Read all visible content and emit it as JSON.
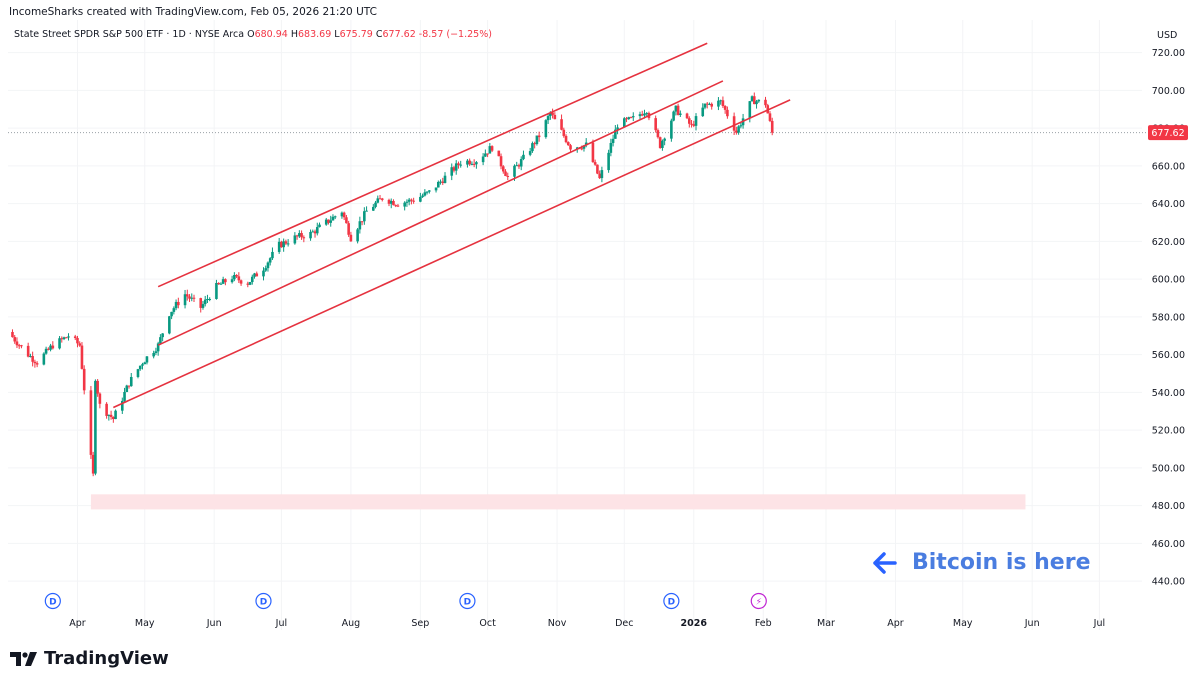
{
  "header": {
    "credit": "IncomeSharks created with TradingView.com, Feb 05, 2026 21:20 UTC",
    "symbol": "State Street SPDR S&P 500 ETF · 1D · NYSE Arca",
    "open_label": "O",
    "open": "680.94",
    "high_label": "H",
    "high": "683.69",
    "low_label": "L",
    "low": "675.79",
    "close_label": "C",
    "close": "677.62",
    "change": "-8.57 (−1.25%)",
    "currency": "USD"
  },
  "brand": {
    "name": "TradingView"
  },
  "annotation": {
    "text": "Bitcoin is here",
    "arrow": "left-arrow-icon"
  },
  "colors": {
    "up": "#089981",
    "down": "#f23645",
    "channel": "#e5323f",
    "zone": "#fde3e6",
    "annotation": "#2962ff",
    "price_tag": "#f23645"
  },
  "chart_data": {
    "type": "candlestick",
    "y_axis": {
      "ylim": [
        430,
        732
      ],
      "ticks": [
        440,
        460,
        480,
        500,
        520,
        540,
        560,
        580,
        600,
        620,
        640,
        660,
        680,
        700,
        720
      ],
      "tick_labels": [
        "440.00",
        "460.00",
        "480.00",
        "500.00",
        "520.00",
        "540.00",
        "560.00",
        "580.00",
        "600.00",
        "620.00",
        "640.00",
        "660.00",
        "680.00",
        "700.00",
        "720.00"
      ]
    },
    "x_axis": {
      "xlim": [
        "2025-03-01",
        "2026-07-20"
      ],
      "labels": [
        {
          "date": "2025-04-01",
          "text": "Apr"
        },
        {
          "date": "2025-05-01",
          "text": "May"
        },
        {
          "date": "2025-06-01",
          "text": "Jun"
        },
        {
          "date": "2025-07-01",
          "text": "Jul"
        },
        {
          "date": "2025-08-01",
          "text": "Aug"
        },
        {
          "date": "2025-09-01",
          "text": "Sep"
        },
        {
          "date": "2025-10-01",
          "text": "Oct"
        },
        {
          "date": "2025-11-01",
          "text": "Nov"
        },
        {
          "date": "2025-12-01",
          "text": "Dec"
        },
        {
          "date": "2026-01-01",
          "text": "2026",
          "bold": true
        },
        {
          "date": "2026-02-01",
          "text": "Feb"
        },
        {
          "date": "2026-03-01",
          "text": "Mar"
        },
        {
          "date": "2026-04-01",
          "text": "Apr"
        },
        {
          "date": "2026-05-01",
          "text": "May"
        },
        {
          "date": "2026-06-01",
          "text": "Jun"
        },
        {
          "date": "2026-07-01",
          "text": "Jul"
        }
      ]
    },
    "last_price": 677.62,
    "last_price_label": "677.62",
    "series": [
      {
        "date": "2025-03-01",
        "close": 572
      },
      {
        "date": "2025-03-10",
        "close": 560
      },
      {
        "date": "2025-03-14",
        "close": 556
      },
      {
        "date": "2025-03-21",
        "close": 565
      },
      {
        "date": "2025-03-28",
        "close": 570
      },
      {
        "date": "2025-04-02",
        "close": 565
      },
      {
        "date": "2025-04-04",
        "close": 542
      },
      {
        "date": "2025-04-07",
        "close": 505
      },
      {
        "date": "2025-04-08",
        "close": 496
      },
      {
        "date": "2025-04-09",
        "close": 548
      },
      {
        "date": "2025-04-11",
        "close": 533
      },
      {
        "date": "2025-04-17",
        "close": 526
      },
      {
        "date": "2025-04-24",
        "close": 545
      },
      {
        "date": "2025-04-30",
        "close": 556
      },
      {
        "date": "2025-05-07",
        "close": 565
      },
      {
        "date": "2025-05-12",
        "close": 582
      },
      {
        "date": "2025-05-19",
        "close": 592
      },
      {
        "date": "2025-05-26",
        "close": 585
      },
      {
        "date": "2025-06-02",
        "close": 596
      },
      {
        "date": "2025-06-09",
        "close": 601
      },
      {
        "date": "2025-06-16",
        "close": 598
      },
      {
        "date": "2025-06-23",
        "close": 606
      },
      {
        "date": "2025-06-30",
        "close": 618
      },
      {
        "date": "2025-07-07",
        "close": 622
      },
      {
        "date": "2025-07-14",
        "close": 624
      },
      {
        "date": "2025-07-21",
        "close": 630
      },
      {
        "date": "2025-07-28",
        "close": 636
      },
      {
        "date": "2025-08-01",
        "close": 622
      },
      {
        "date": "2025-08-08",
        "close": 636
      },
      {
        "date": "2025-08-15",
        "close": 643
      },
      {
        "date": "2025-08-22",
        "close": 640
      },
      {
        "date": "2025-08-29",
        "close": 642
      },
      {
        "date": "2025-09-05",
        "close": 646
      },
      {
        "date": "2025-09-12",
        "close": 654
      },
      {
        "date": "2025-09-19",
        "close": 662
      },
      {
        "date": "2025-09-26",
        "close": 663
      },
      {
        "date": "2025-10-03",
        "close": 670
      },
      {
        "date": "2025-10-10",
        "close": 654
      },
      {
        "date": "2025-10-17",
        "close": 664
      },
      {
        "date": "2025-10-24",
        "close": 676
      },
      {
        "date": "2025-10-29",
        "close": 688
      },
      {
        "date": "2025-11-04",
        "close": 676
      },
      {
        "date": "2025-11-07",
        "close": 670
      },
      {
        "date": "2025-11-14",
        "close": 671
      },
      {
        "date": "2025-11-20",
        "close": 653
      },
      {
        "date": "2025-11-28",
        "close": 682
      },
      {
        "date": "2025-12-05",
        "close": 685
      },
      {
        "date": "2025-12-11",
        "close": 690
      },
      {
        "date": "2025-12-17",
        "close": 671
      },
      {
        "date": "2025-12-24",
        "close": 690
      },
      {
        "date": "2025-12-31",
        "close": 681
      },
      {
        "date": "2026-01-06",
        "close": 692
      },
      {
        "date": "2026-01-13",
        "close": 694
      },
      {
        "date": "2026-01-20",
        "close": 678
      },
      {
        "date": "2026-01-27",
        "close": 695
      },
      {
        "date": "2026-02-02",
        "close": 693
      },
      {
        "date": "2026-02-05",
        "close": 677.62
      }
    ],
    "channel_lines": [
      {
        "start": {
          "date": "2025-05-07",
          "value": 596
        },
        "end": {
          "date": "2026-01-07",
          "value": 725
        }
      },
      {
        "start": {
          "date": "2025-05-07",
          "value": 565
        },
        "end": {
          "date": "2026-01-14",
          "value": 705
        }
      },
      {
        "start": {
          "date": "2025-04-17",
          "value": 532
        },
        "end": {
          "date": "2026-02-13",
          "value": 695
        }
      }
    ],
    "support_zone": {
      "from_date": "2025-04-07",
      "to_date": "2026-05-29",
      "low": 478,
      "high": 486
    },
    "event_markers": [
      {
        "date": "2025-03-21",
        "label": "D"
      },
      {
        "date": "2025-06-23",
        "label": "D"
      },
      {
        "date": "2025-09-22",
        "label": "D"
      },
      {
        "date": "2025-12-22",
        "label": "D"
      },
      {
        "date": "2026-01-30",
        "label": "⚡",
        "type": "earnings"
      }
    ]
  }
}
